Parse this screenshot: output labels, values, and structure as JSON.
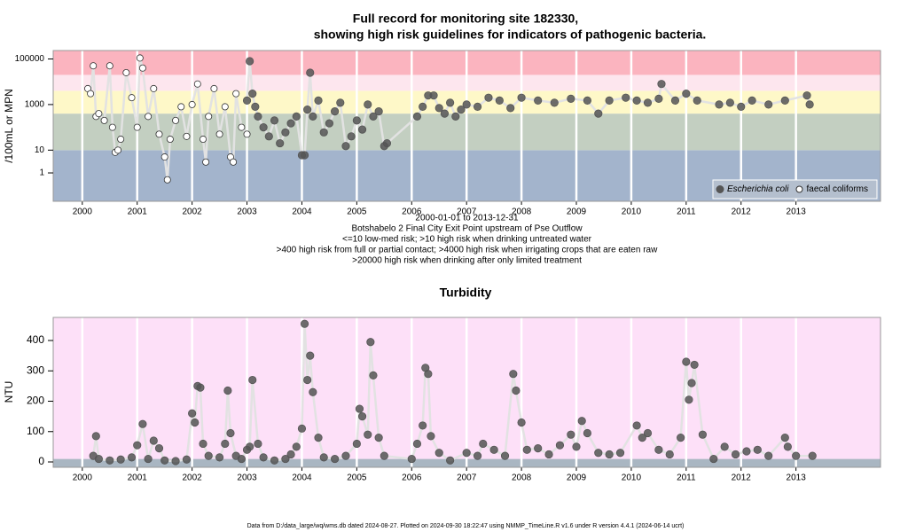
{
  "chart_data": [
    {
      "type": "scatter",
      "title": "Full record for monitoring site 182330,",
      "subtitle": "showing high risk guidelines for indicators of pathogenic bacteria.",
      "y_label": "/100mL or MPN",
      "log_y": true,
      "xlim": [
        1999.47,
        2014.54
      ],
      "xticks": [
        2000,
        2001,
        2002,
        2003,
        2004,
        2005,
        2006,
        2007,
        2008,
        2009,
        2010,
        2011,
        2012,
        2013
      ],
      "ylim": [
        0.057,
        234000
      ],
      "yticks": [
        1,
        10,
        1000,
        100000
      ],
      "band_breaks": [
        10,
        400,
        4000,
        20000
      ],
      "band_colors": [
        "#a3b4cc",
        "#c3cfc1",
        "#fef8c8",
        "#fde6ee",
        "#fbb4bf"
      ],
      "grid": true,
      "legend": "bottomright",
      "notes": [
        "2000-01-01 to 2013-12-31",
        "Botshabelo 2 Final City Exit Point upstream of Pse Outflow",
        "<=10 low-med risk; >10 high risk when drinking untreated water",
        ">400 high risk from full or partial contact; >4000 high risk when irrigating crops that are eaten raw",
        ">20000 high risk when drinking after only limited treatment"
      ],
      "series": [
        {
          "name": "Escherichia coli",
          "color": "#555555",
          "filled": true,
          "x": [
            2003.0,
            2003.05,
            2003.1,
            2003.15,
            2003.2,
            2003.3,
            2003.4,
            2003.5,
            2003.6,
            2003.7,
            2003.8,
            2003.9,
            2004.0,
            2004.05,
            2004.1,
            2004.15,
            2004.2,
            2004.3,
            2004.4,
            2004.5,
            2004.6,
            2004.7,
            2004.8,
            2004.9,
            2005.0,
            2005.1,
            2005.2,
            2005.3,
            2005.4,
            2005.5,
            2005.55,
            2006.1,
            2006.2,
            2006.3,
            2006.4,
            2006.5,
            2006.6,
            2006.7,
            2006.8,
            2006.9,
            2007.0,
            2007.2,
            2007.4,
            2007.6,
            2007.8,
            2008.0,
            2008.3,
            2008.6,
            2008.9,
            2009.2,
            2009.4,
            2009.6,
            2009.9,
            2010.1,
            2010.3,
            2010.5,
            2010.55,
            2010.8,
            2011.0,
            2011.2,
            2011.6,
            2011.8,
            2012.0,
            2012.2,
            2012.5,
            2012.8,
            2013.2,
            2013.25
          ],
          "values": [
            1500,
            80000,
            3000,
            800,
            300,
            100,
            40,
            200,
            20,
            60,
            150,
            300,
            6,
            6,
            600,
            25000,
            300,
            1500,
            60,
            150,
            500,
            1200,
            15,
            40,
            200,
            80,
            1000,
            300,
            500,
            15,
            20,
            300,
            800,
            2500,
            2500,
            700,
            400,
            1200,
            300,
            600,
            1000,
            800,
            2000,
            1500,
            700,
            2000,
            1500,
            1200,
            1800,
            1500,
            400,
            1500,
            2000,
            1500,
            1200,
            1800,
            8000,
            1500,
            3000,
            1500,
            1000,
            1200,
            800,
            1500,
            1000,
            1500,
            2500,
            1000
          ]
        },
        {
          "name": "faecal coliforms",
          "color": "#333333",
          "filled": false,
          "x": [
            2000.1,
            2000.15,
            2000.2,
            2000.25,
            2000.3,
            2000.4,
            2000.5,
            2000.55,
            2000.6,
            2000.65,
            2000.7,
            2000.8,
            2000.9,
            2001.0,
            2001.05,
            2001.1,
            2001.2,
            2001.3,
            2001.4,
            2001.5,
            2001.55,
            2001.6,
            2001.7,
            2001.8,
            2001.9,
            2002.0,
            2002.1,
            2002.2,
            2002.25,
            2002.3,
            2002.4,
            2002.5,
            2002.6,
            2002.7,
            2002.75,
            2002.8,
            2002.9,
            2003.0
          ],
          "values": [
            5000,
            3000,
            50000,
            300,
            400,
            200,
            50000,
            100,
            8,
            10,
            30,
            25000,
            2000,
            100,
            110000,
            40000,
            300,
            5000,
            50,
            5,
            0.5,
            30,
            200,
            800,
            40,
            1000,
            8000,
            30,
            3,
            300,
            5000,
            50,
            800,
            5,
            3,
            3000,
            100,
            50
          ]
        }
      ]
    },
    {
      "type": "scatter",
      "title": "Turbidity",
      "y_label": "NTU",
      "log_y": false,
      "xlim": [
        1999.47,
        2014.54
      ],
      "xticks": [
        2000,
        2001,
        2002,
        2003,
        2004,
        2005,
        2006,
        2007,
        2008,
        2009,
        2010,
        2011,
        2012,
        2013
      ],
      "ylim": [
        -17.5,
        476
      ],
      "yticks": [
        0,
        100,
        200,
        300,
        400
      ],
      "band_breaks": [
        10
      ],
      "band_colors": [
        "#a9b6c2",
        "#fde0f8"
      ],
      "grid": true,
      "series": [
        {
          "color": "#555555",
          "filled": true,
          "x": [
            2000.2,
            2000.25,
            2000.3,
            2000.5,
            2000.7,
            2000.9,
            2001.0,
            2001.1,
            2001.2,
            2001.3,
            2001.4,
            2001.5,
            2001.7,
            2001.9,
            2002.0,
            2002.05,
            2002.1,
            2002.15,
            2002.2,
            2002.3,
            2002.5,
            2002.6,
            2002.65,
            2002.7,
            2002.8,
            2002.9,
            2003.0,
            2003.05,
            2003.1,
            2003.2,
            2003.3,
            2003.5,
            2003.7,
            2003.8,
            2003.9,
            2004.0,
            2004.05,
            2004.1,
            2004.15,
            2004.2,
            2004.3,
            2004.4,
            2004.6,
            2004.8,
            2005.0,
            2005.05,
            2005.1,
            2005.2,
            2005.25,
            2005.3,
            2005.4,
            2005.5,
            2006.0,
            2006.1,
            2006.2,
            2006.25,
            2006.3,
            2006.35,
            2006.5,
            2006.7,
            2007.0,
            2007.2,
            2007.3,
            2007.5,
            2007.7,
            2007.85,
            2007.9,
            2008.0,
            2008.1,
            2008.3,
            2008.5,
            2008.7,
            2008.9,
            2009.0,
            2009.1,
            2009.2,
            2009.4,
            2009.6,
            2009.8,
            2010.1,
            2010.2,
            2010.3,
            2010.5,
            2010.7,
            2010.9,
            2011.0,
            2011.05,
            2011.1,
            2011.15,
            2011.3,
            2011.5,
            2011.7,
            2011.9,
            2012.1,
            2012.3,
            2012.5,
            2012.8,
            2012.85,
            2013.0,
            2013.3
          ],
          "values": [
            20,
            85,
            10,
            5,
            8,
            15,
            55,
            125,
            10,
            70,
            45,
            5,
            3,
            8,
            160,
            130,
            250,
            245,
            60,
            20,
            15,
            60,
            235,
            95,
            20,
            10,
            40,
            50,
            270,
            60,
            15,
            5,
            10,
            25,
            50,
            110,
            455,
            270,
            350,
            230,
            80,
            15,
            10,
            20,
            60,
            175,
            150,
            90,
            395,
            285,
            80,
            20,
            10,
            60,
            120,
            310,
            290,
            85,
            30,
            5,
            30,
            20,
            60,
            40,
            20,
            290,
            235,
            130,
            40,
            45,
            25,
            55,
            90,
            50,
            135,
            95,
            30,
            25,
            30,
            120,
            80,
            95,
            40,
            25,
            80,
            330,
            205,
            260,
            320,
            90,
            10,
            50,
            25,
            35,
            40,
            20,
            80,
            50,
            20,
            20
          ]
        }
      ]
    }
  ],
  "footer": "Data from D:/data_large/wq/wms.db dated 2024-08-27. Plotted on 2024-09-30 18:22:47 using NMMP_TimeLine.R v1.6 under R version 4.4.1 (2024-06-14 ucrt)"
}
